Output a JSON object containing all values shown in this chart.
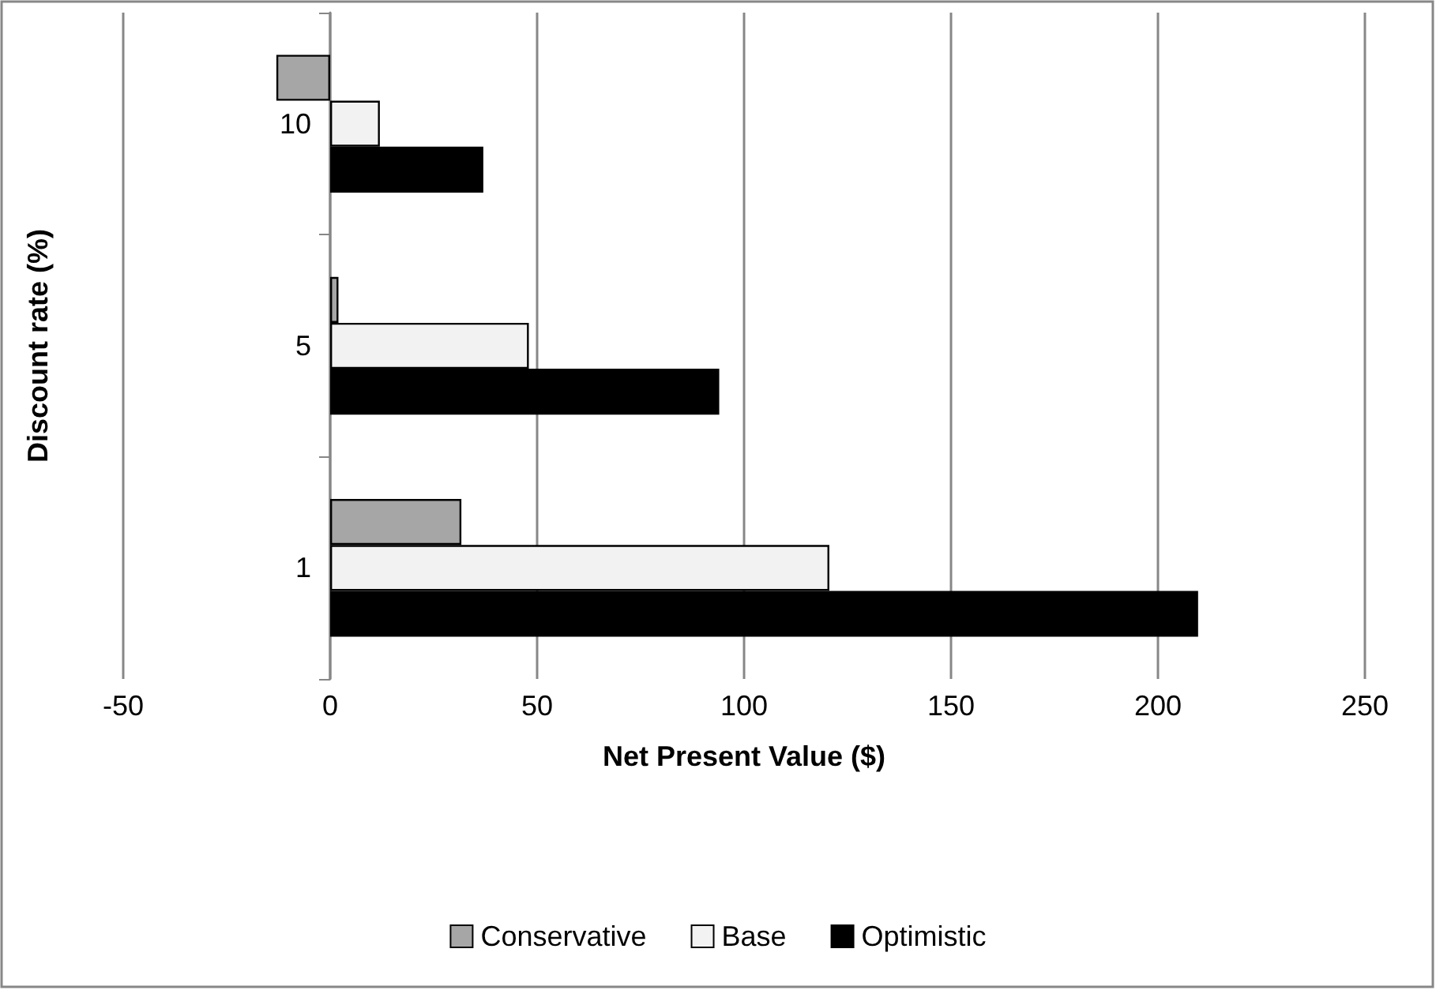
{
  "chart_data": {
    "type": "bar",
    "orientation": "horizontal",
    "xlabel": "Net Present Value ($)",
    "ylabel": "Discount rate (%)",
    "categories": [
      "10",
      "5",
      "1"
    ],
    "series": [
      {
        "name": "Conservative",
        "color": "#a6a6a6",
        "values": [
          -13,
          2,
          31.7
        ]
      },
      {
        "name": "Base",
        "color": "#f2f2f2",
        "values": [
          12,
          48,
          120.6
        ]
      },
      {
        "name": "Optimistic",
        "color": "#000000",
        "values": [
          37,
          94,
          209.7
        ]
      }
    ],
    "xlim": [
      -50,
      250
    ],
    "xticks": [
      -50,
      0,
      50,
      100,
      150,
      200,
      250
    ],
    "grid": "x",
    "legend": "bottom"
  }
}
